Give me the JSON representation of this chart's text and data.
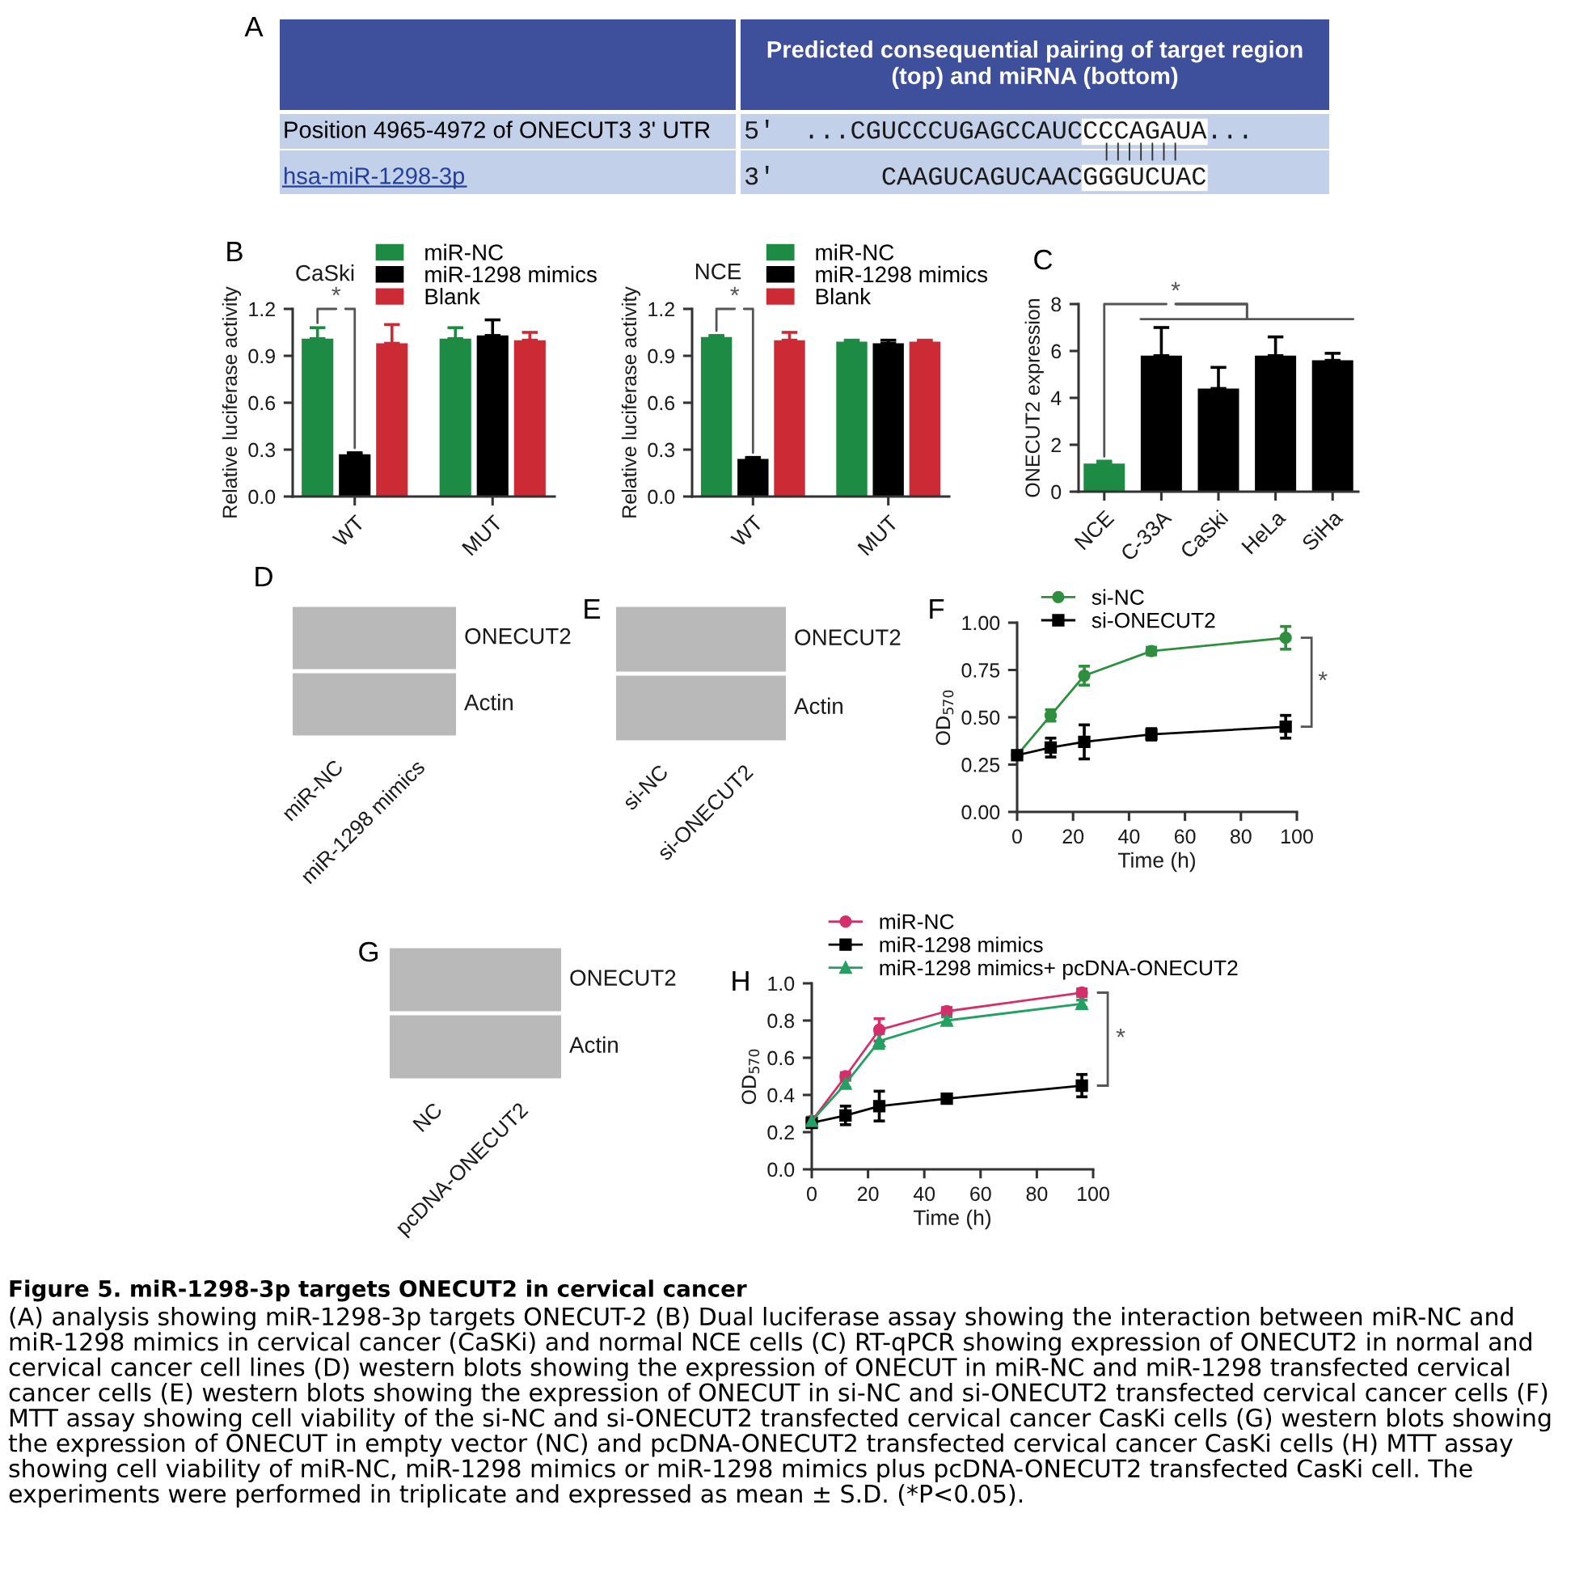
{
  "chart_data": [
    {
      "type": "other",
      "title": "A",
      "annotations": [
        "Predicted consequential pairing of target region\n(top) and miRNA (bottom)",
        "Position 4965-4972 of ONECUT3 3' UTR",
        "5'",
        "...CGUCCCUGAGCCAUC",
        "CCCAGAUA",
        "...",
        "|||||||",
        "hsa-miR-1298-3p",
        "3'",
        "CAAGUCAGUCAAC",
        "GGGUCUAC"
      ]
    },
    {
      "type": "bar",
      "title": "B",
      "subtitle": "CaSki",
      "ylabel": "Relative luciferase activity",
      "categories": [
        "WT",
        "MUT"
      ],
      "series": [
        {
          "name": "miR-NC",
          "color": "#1d8b43",
          "values": [
            1.01,
            1.01
          ],
          "errors": [
            [
              1.01,
              1.08
            ],
            [
              1.01,
              1.08
            ]
          ]
        },
        {
          "name": "miR-1298 mimics",
          "color": "#000000",
          "values": [
            0.27,
            1.03
          ],
          "errors": [
            [
              0.27,
              0.28
            ],
            [
              1.03,
              1.13
            ]
          ]
        },
        {
          "name": "Blank",
          "color": "#cc2b36",
          "values": [
            0.98,
            1.0
          ],
          "errors": [
            [
              0.98,
              1.1
            ],
            [
              1.0,
              1.05
            ]
          ]
        }
      ],
      "ylim": [
        0,
        1.2
      ],
      "yticks": [
        {
          "value": 0,
          "label": "0.0"
        },
        0.3,
        0.6,
        0.9,
        1.2
      ],
      "legend": "top",
      "annotations": [
        "*"
      ]
    },
    {
      "type": "bar",
      "subtitle": "NCE",
      "ylabel": "Relative luciferase activity",
      "categories": [
        "WT",
        "MUT"
      ],
      "series": [
        {
          "name": "miR-NC",
          "color": "#1d8b43",
          "values": [
            1.02,
            0.99
          ],
          "errors": [
            [
              1.02,
              1.03
            ],
            [
              0.99,
              1.0
            ]
          ]
        },
        {
          "name": "miR-1298 mimics",
          "color": "#000000",
          "values": [
            0.24,
            0.98
          ],
          "errors": [
            [
              0.24,
              0.25
            ],
            [
              0.98,
              1.0
            ]
          ]
        },
        {
          "name": "Blank",
          "color": "#cc2b36",
          "values": [
            1.0,
            0.99
          ],
          "errors": [
            [
              1.0,
              1.05
            ],
            [
              0.99,
              1.0
            ]
          ]
        }
      ],
      "ylim": [
        0,
        1.2
      ],
      "yticks": [
        {
          "value": 0,
          "label": "0.0"
        },
        0.3,
        0.6,
        0.9,
        1.2
      ],
      "legend": "top",
      "annotations": [
        "*"
      ]
    },
    {
      "type": "bar",
      "title": "C",
      "ylabel": "ONECUT2 expression",
      "categories": [
        "NCE",
        "C-33A",
        "CaSki",
        "HeLa",
        "SiHa"
      ],
      "values": [
        1.2,
        5.8,
        4.4,
        5.8,
        5.6
      ],
      "colors": [
        "#1d8b43",
        "#000000",
        "#000000",
        "#000000",
        "#000000"
      ],
      "errors": [
        [
          1.2,
          1.3
        ],
        [
          5.8,
          7.0
        ],
        [
          4.4,
          5.3
        ],
        [
          5.8,
          6.6
        ],
        [
          5.6,
          5.9
        ]
      ],
      "ylim": [
        0,
        8
      ],
      "yticks": [
        0,
        2,
        4,
        6,
        8
      ],
      "annotations": [
        "*"
      ]
    },
    {
      "type": "other",
      "title": "D",
      "categories": [
        "miR-NC",
        "miR-1298 mimics"
      ],
      "annotations": [
        "ONECUT2",
        "Actin"
      ]
    },
    {
      "type": "other",
      "title": "E",
      "categories": [
        "si-NC",
        "si-ONECUT2"
      ],
      "annotations": [
        "ONECUT2",
        "Actin"
      ]
    },
    {
      "type": "line",
      "title": "F",
      "xlabel": "Time (h)",
      "ylabel": "OD$_{570}$",
      "x": [
        0,
        12,
        24,
        48,
        96
      ],
      "series": [
        {
          "name": "si-NC",
          "color": "#2f8f3f",
          "marker": "circle",
          "values": [
            0.3,
            0.51,
            0.72,
            0.85,
            0.92
          ],
          "errors": [
            null,
            0.03,
            0.05,
            0.02,
            0.06
          ]
        },
        {
          "name": "si-ONECUT2",
          "color": "#000000",
          "marker": "square",
          "values": [
            0.3,
            0.34,
            0.37,
            0.41,
            0.45
          ],
          "errors": [
            null,
            0.05,
            0.09,
            0.03,
            0.06
          ]
        }
      ],
      "xlim": [
        0,
        100
      ],
      "xticks": [
        0,
        20,
        40,
        60,
        80,
        100
      ],
      "ylim": [
        0,
        1
      ],
      "yticks": [
        {
          "value": 0,
          "label": "0.00"
        },
        0.25,
        {
          "value": 0.5,
          "label": "0.50"
        },
        0.75,
        {
          "value": 1,
          "label": "1.00"
        }
      ],
      "legend": "top left",
      "annotations": [
        "*"
      ]
    },
    {
      "type": "other",
      "title": "G",
      "categories": [
        "NC",
        "pcDNA-ONECUT2"
      ],
      "annotations": [
        "ONECUT2",
        "Actin"
      ]
    },
    {
      "type": "line",
      "title": "H",
      "xlabel": "Time (h)",
      "ylabel": "OD$_{570}$",
      "x": [
        0,
        12,
        24,
        48,
        96
      ],
      "series": [
        {
          "name": "miR-NC",
          "color": "#d42e6b",
          "marker": "circle",
          "values": [
            0.26,
            0.5,
            0.75,
            0.85,
            0.95
          ],
          "errors": [
            0.02,
            0.02,
            0.06,
            0.02,
            0.02
          ]
        },
        {
          "name": "miR-1298 mimics",
          "color": "#000000",
          "marker": "square",
          "values": [
            0.25,
            0.29,
            0.34,
            0.38,
            0.45
          ],
          "errors": [
            0.02,
            0.05,
            0.08,
            0.02,
            0.06
          ]
        },
        {
          "name": "miR-1298 mimics+ pcDNA-ONECUT2",
          "color": "#24a062",
          "marker": "triangle",
          "values": [
            0.26,
            0.46,
            0.69,
            0.8,
            0.89
          ],
          "errors": [
            0.02,
            0.02,
            0.04,
            0.02,
            0.02
          ]
        }
      ],
      "xlim": [
        0,
        100
      ],
      "xticks": [
        0,
        20,
        40,
        60,
        80,
        100
      ],
      "ylim": [
        0,
        1
      ],
      "yticks": [
        {
          "value": 0,
          "label": "0.0"
        },
        0.2,
        0.4,
        0.6,
        0.8,
        {
          "value": 1,
          "label": "1.0"
        }
      ],
      "legend": "top",
      "annotations": [
        "*"
      ]
    },
    {
      "type": "other",
      "title": "Figure 5. miR-1298-3p targets ONECUT2 in cervical cancer",
      "annotations": [
        "(A) analysis showing miR-1298-3p targets ONECUT-2 (B) Dual luciferase assay showing the interaction between miR-NC and miR-1298 mimics in cervical cancer (CaSKi) and normal NCE cells (C) RT-qPCR showing expression of ONECUT2 in normal and cervical cancer cell lines (D) western blots showing the expression of ONECUT in miR-NC and miR-1298 transfected cervical cancer cells (E) western blots showing the expression of ONECUT in si-NC and si-ONECUT2 transfected cervical cancer cells (F) MTT assay showing cell viability of the si-NC and si-ONECUT2 transfected cervical cancer CasKi cells (G) western blots showing the expression of ONECUT in empty vector (NC) and pcDNA-ONECUT2 transfected cervical cancer CasKi cells (H) MTT assay showing cell viability of miR-NC, miR-1298 mimics or miR-1298 mimics plus pcDNA-ONECUT2 transfected CasKi cell. The experiments were performed in triplicate and expressed as mean ± S.D. (*P<0.05)."
      ]
    }
  ]
}
